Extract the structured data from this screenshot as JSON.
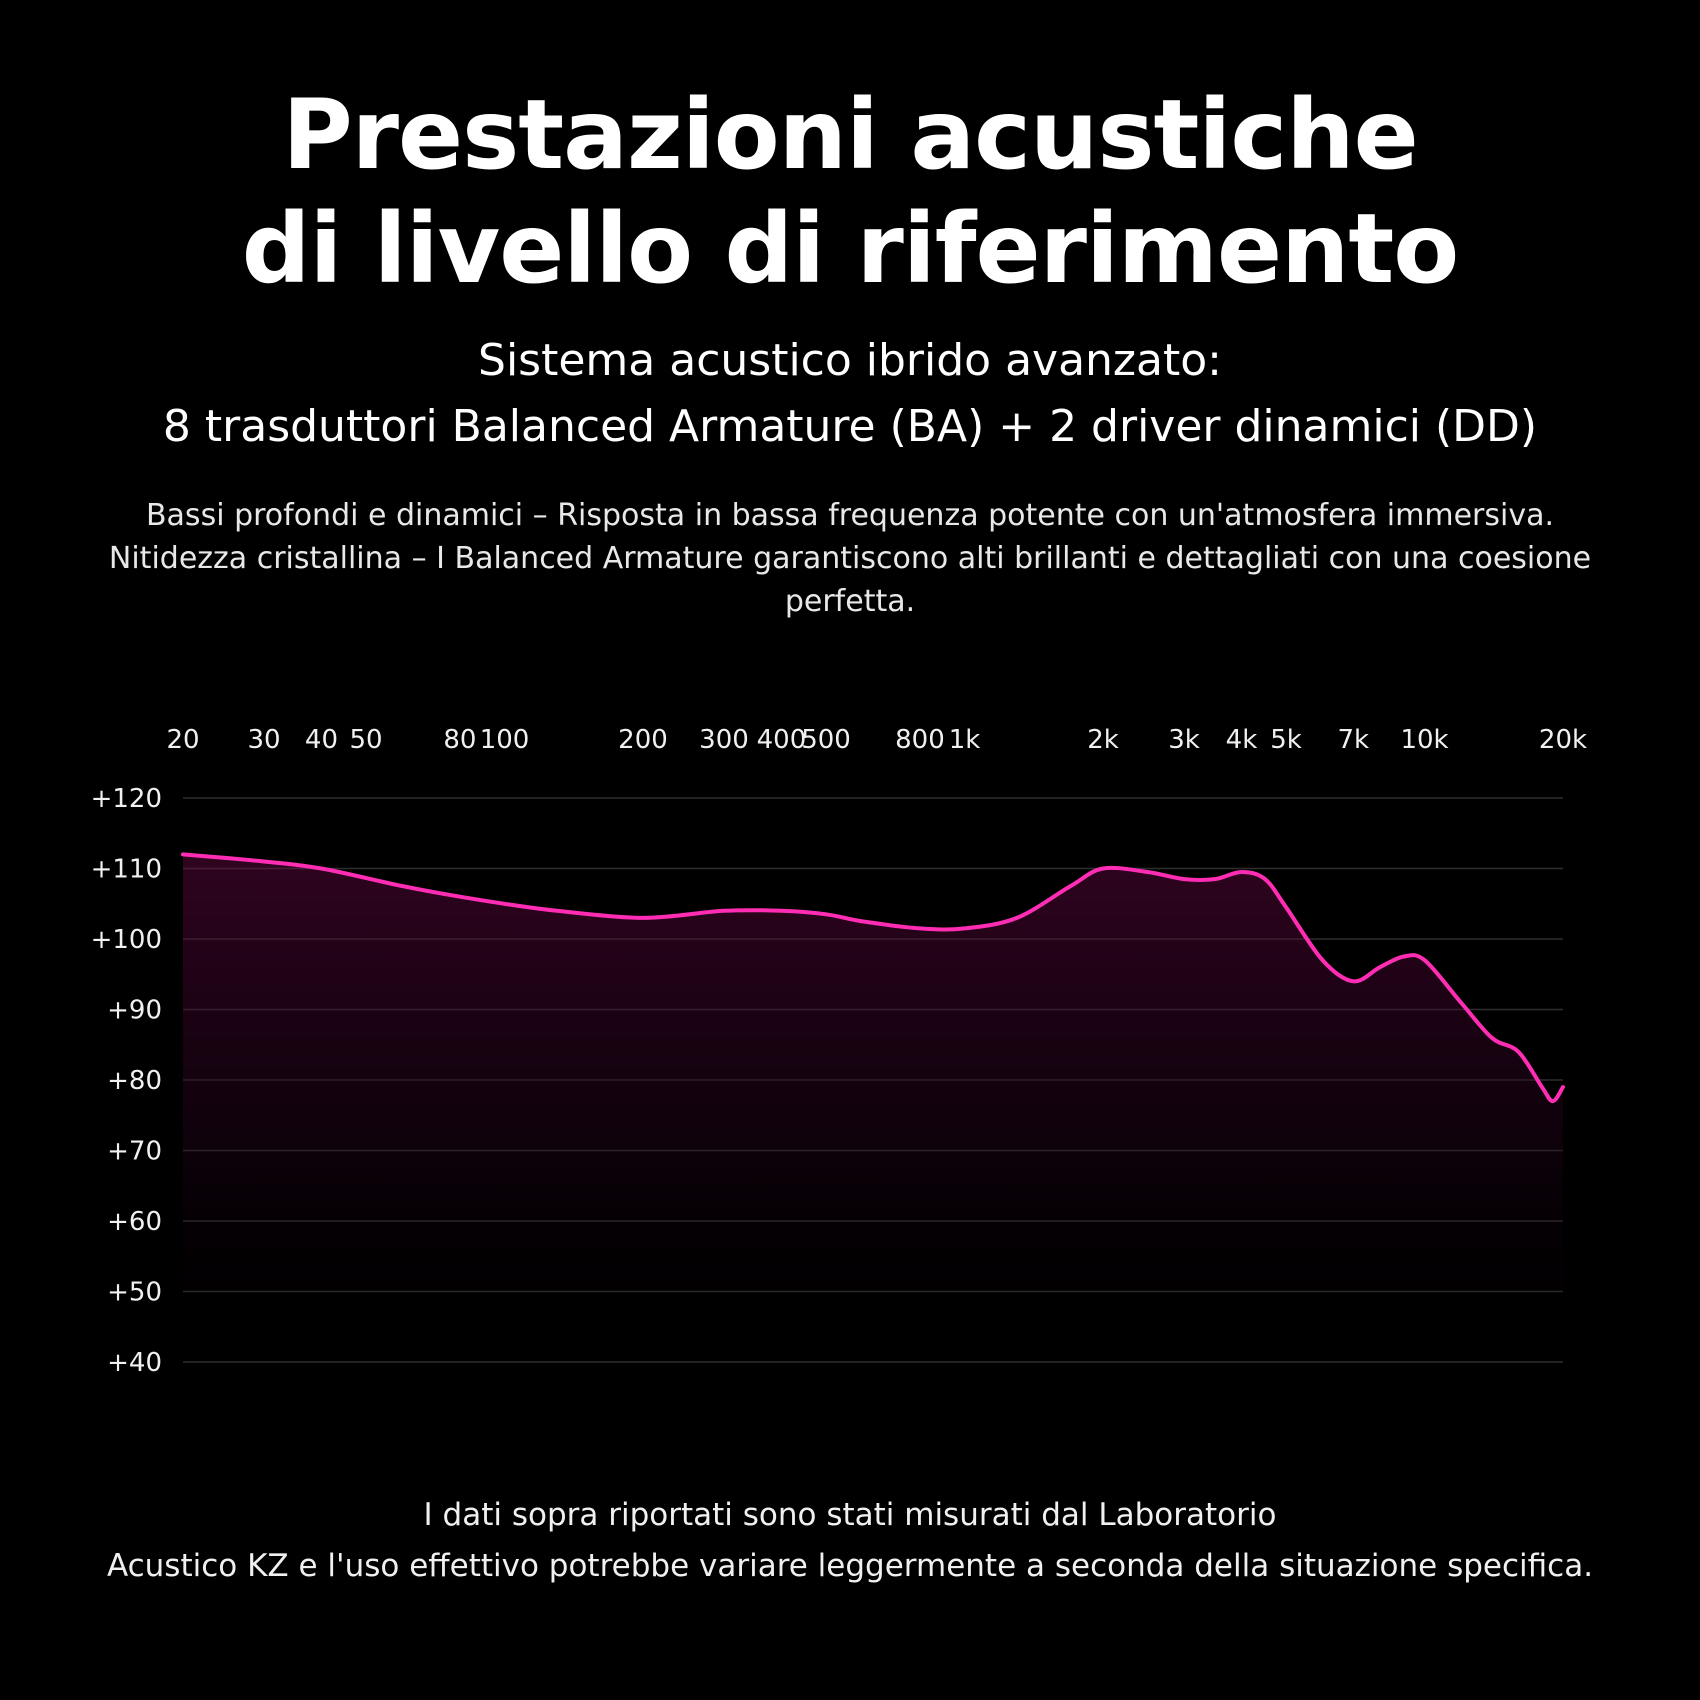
{
  "header": {
    "title_line1": "Prestazioni acustiche",
    "title_line2": "di livello di riferimento",
    "subtitle_line1": "Sistema acustico ibrido avanzato:",
    "subtitle_line2": "8 trasduttori Balanced Armature (BA) + 2 driver dinamici (DD)"
  },
  "description": {
    "line1": "Bassi profondi e dinamici – Risposta in bassa frequenza potente con un'atmosfera immersiva.",
    "line2": "Nitidezza cristallina – I Balanced Armature garantiscono alti brillanti e dettagliati con una coesione",
    "line3": "perfetta."
  },
  "footer": {
    "line1": "I dati sopra riportati sono stati misurati dal Laboratorio",
    "line2": "Acustico KZ e l'uso effettivo potrebbe variare leggermente a seconda della situazione specifica."
  },
  "chart_data": {
    "type": "area",
    "title": "",
    "xlabel": "",
    "ylabel": "",
    "x_scale": "log",
    "xlim": [
      20,
      20000
    ],
    "ylim": [
      40,
      120
    ],
    "grid": true,
    "line_color": "#ff2db4",
    "x_ticks": [
      {
        "value": 20,
        "label": "20"
      },
      {
        "value": 30,
        "label": "30"
      },
      {
        "value": 40,
        "label": "40"
      },
      {
        "value": 50,
        "label": "50"
      },
      {
        "value": 80,
        "label": "80"
      },
      {
        "value": 100,
        "label": "100"
      },
      {
        "value": 200,
        "label": "200"
      },
      {
        "value": 300,
        "label": "300"
      },
      {
        "value": 400,
        "label": "400"
      },
      {
        "value": 500,
        "label": "500"
      },
      {
        "value": 800,
        "label": "800"
      },
      {
        "value": 1000,
        "label": "1k"
      },
      {
        "value": 2000,
        "label": "2k"
      },
      {
        "value": 3000,
        "label": "3k"
      },
      {
        "value": 4000,
        "label": "4k"
      },
      {
        "value": 5000,
        "label": "5k"
      },
      {
        "value": 7000,
        "label": "7k"
      },
      {
        "value": 10000,
        "label": "10k"
      },
      {
        "value": 20000,
        "label": "20k"
      }
    ],
    "y_ticks": [
      {
        "value": 120,
        "label": "+120"
      },
      {
        "value": 110,
        "label": "+110"
      },
      {
        "value": 100,
        "label": "+100"
      },
      {
        "value": 90,
        "label": "+90"
      },
      {
        "value": 80,
        "label": "+80"
      },
      {
        "value": 70,
        "label": "+70"
      },
      {
        "value": 60,
        "label": "+60"
      },
      {
        "value": 50,
        "label": "+50"
      },
      {
        "value": 40,
        "label": "+40"
      }
    ],
    "series": [
      {
        "x": [
          20,
          30,
          40,
          60,
          80,
          100,
          130,
          200,
          300,
          400,
          500,
          600,
          800,
          1000,
          1300,
          1700,
          2000,
          2500,
          3000,
          3500,
          4000,
          4500,
          5000,
          6000,
          7000,
          8000,
          9000,
          10000,
          12000,
          14000,
          16000,
          18000,
          19000,
          20000
        ],
        "y": [
          112,
          111,
          110,
          107.5,
          106,
          105,
          104,
          103,
          104,
          104,
          103.5,
          102.5,
          101.5,
          101.5,
          103,
          107.5,
          110,
          109.5,
          108.5,
          108.5,
          109.5,
          108.5,
          104.5,
          97,
          94,
          96,
          97.5,
          97,
          91,
          86,
          84,
          79,
          77,
          79
        ]
      }
    ]
  }
}
